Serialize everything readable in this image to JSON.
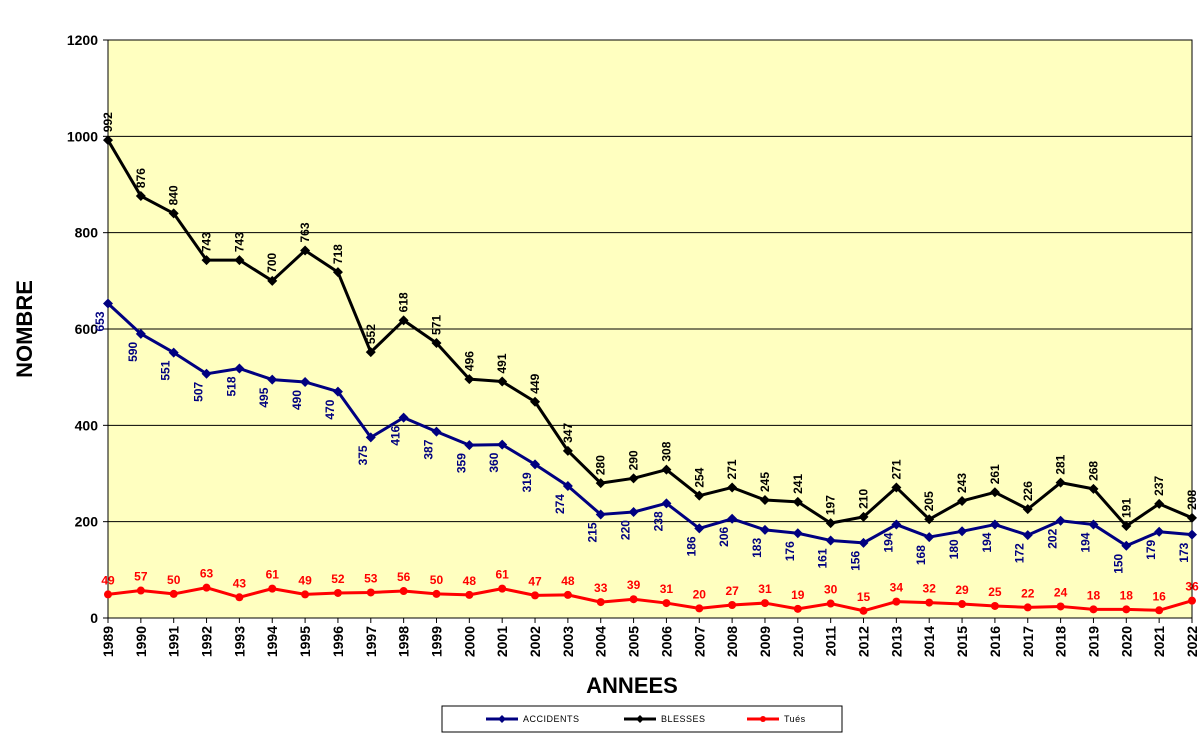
{
  "chart_data": {
    "type": "line",
    "title": "",
    "xlabel": "ANNEES",
    "ylabel": "NOMBRE",
    "ylim": [
      0,
      1200
    ],
    "yticks": [
      0,
      200,
      400,
      600,
      800,
      1000,
      1200
    ],
    "grid": true,
    "legend_position": "bottom",
    "plot_background": "#FFFFC0",
    "x": [
      "1989",
      "1990",
      "1991",
      "1992",
      "1993",
      "1994",
      "1995",
      "1996",
      "1997",
      "1998",
      "1999",
      "2000",
      "2001",
      "2002",
      "2003",
      "2004",
      "2005",
      "2006",
      "2007",
      "2008",
      "2009",
      "2010",
      "2011",
      "2012",
      "2013",
      "2014",
      "2015",
      "2016",
      "2017",
      "2018",
      "2019",
      "2020",
      "2021",
      "2022"
    ],
    "series": [
      {
        "name": "ACCIDENTS",
        "color": "#000080",
        "marker": "diamond",
        "label_position": "below",
        "values": [
          653,
          590,
          551,
          507,
          518,
          495,
          490,
          470,
          375,
          416,
          387,
          359,
          360,
          319,
          274,
          215,
          220,
          238,
          186,
          206,
          183,
          176,
          161,
          156,
          194,
          168,
          180,
          194,
          172,
          202,
          194,
          150,
          179,
          173
        ]
      },
      {
        "name": "BLESSES",
        "color": "#000000",
        "marker": "diamond",
        "label_position": "above",
        "values": [
          992,
          876,
          840,
          743,
          743,
          700,
          763,
          718,
          552,
          618,
          571,
          496,
          491,
          449,
          347,
          280,
          290,
          308,
          254,
          271,
          245,
          241,
          197,
          210,
          271,
          205,
          243,
          261,
          226,
          281,
          268,
          191,
          237,
          208
        ]
      },
      {
        "name": "Tués",
        "color": "#FF0000",
        "marker": "circle",
        "label_position": "above",
        "values": [
          49,
          57,
          50,
          63,
          43,
          61,
          49,
          52,
          53,
          56,
          50,
          48,
          61,
          47,
          48,
          33,
          39,
          31,
          20,
          27,
          31,
          19,
          30,
          15,
          34,
          32,
          29,
          25,
          22,
          24,
          18,
          18,
          16,
          36
        ]
      }
    ]
  }
}
